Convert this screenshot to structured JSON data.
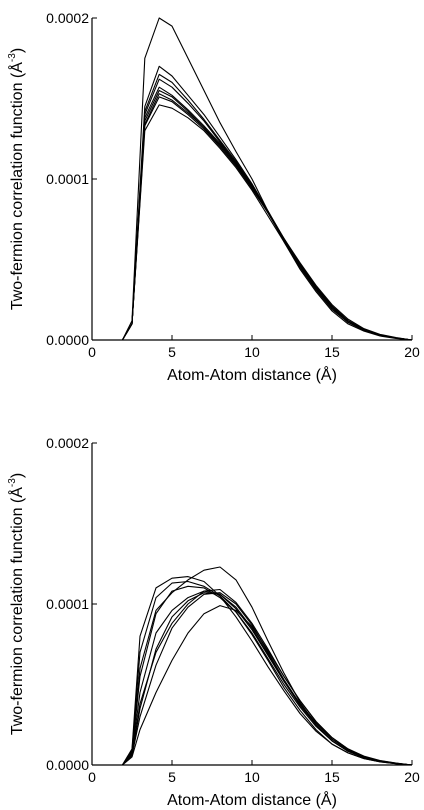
{
  "chart_data": [
    {
      "type": "line",
      "xlabel": "Atom-Atom distance (Å)",
      "ylabel": "Two-fermion correlation function (Å",
      "ylabel_sup": "-3",
      "ylabel_close": ")",
      "xlim": [
        0,
        20
      ],
      "ylim": [
        0,
        0.0002
      ],
      "xticks": [
        "0",
        "5",
        "10",
        "15",
        "20"
      ],
      "yticks": [
        "0.0000",
        "0.0001",
        "0.0002"
      ],
      "grid": false,
      "x": [
        1.9,
        2.5,
        3.3,
        4.2,
        5,
        6,
        7,
        8,
        9,
        10,
        11,
        12,
        13,
        14,
        15,
        16,
        17,
        18,
        19,
        20
      ],
      "series": [
        {
          "values": [
            0,
            1.2e-05,
            0.000175,
            0.000205,
            0.000195,
            0.000175,
            0.000155,
            0.000135,
            0.000117,
            0.0001,
            8e-05,
            6.1e-05,
            4.4e-05,
            3e-05,
            1.8e-05,
            1e-05,
            5.5e-06,
            2.5e-06,
            1e-06,
            0
          ]
        },
        {
          "values": [
            0,
            1e-05,
            0.000145,
            0.00017,
            0.000164,
            0.000152,
            0.00014,
            0.000126,
            0.000112,
            9.7e-05,
            8e-05,
            6.2e-05,
            4.6e-05,
            3.2e-05,
            2e-05,
            1.1e-05,
            6e-06,
            3e-06,
            1.2e-06,
            0
          ]
        },
        {
          "values": [
            0,
            1e-05,
            0.000142,
            0.000165,
            0.00016,
            0.000149,
            0.000137,
            0.000124,
            0.000111,
            9.6e-05,
            8e-05,
            6.2e-05,
            4.6e-05,
            3.2e-05,
            2e-05,
            1.1e-05,
            6e-06,
            3e-06,
            1.2e-06,
            0
          ]
        },
        {
          "values": [
            0,
            1e-05,
            0.00014,
            0.000162,
            0.000157,
            0.000147,
            0.000136,
            0.000123,
            0.00011,
            9.6e-05,
            8e-05,
            6.3e-05,
            4.7e-05,
            3.3e-05,
            2.1e-05,
            1.2e-05,
            6.5e-06,
            3.2e-06,
            1.3e-06,
            0
          ]
        },
        {
          "values": [
            0,
            1e-05,
            0.000138,
            0.000157,
            0.000152,
            0.000143,
            0.000133,
            0.000122,
            0.00011,
            9.6e-05,
            8e-05,
            6.3e-05,
            4.7e-05,
            3.3e-05,
            2.1e-05,
            1.2e-05,
            6.5e-06,
            3.2e-06,
            1.3e-06,
            0
          ]
        },
        {
          "values": [
            0,
            1e-05,
            0.000136,
            0.000155,
            0.000151,
            0.000142,
            0.000132,
            0.000121,
            0.000109,
            9.5e-05,
            7.9e-05,
            6.2e-05,
            4.7e-05,
            3.3e-05,
            2.1e-05,
            1.2e-05,
            6.5e-06,
            3.2e-06,
            1.3e-06,
            0
          ]
        },
        {
          "values": [
            0,
            1e-05,
            0.000134,
            0.000153,
            0.000149,
            0.000141,
            0.000132,
            0.000121,
            0.000109,
            9.5e-05,
            7.9e-05,
            6.2e-05,
            4.7e-05,
            3.3e-05,
            2.1e-05,
            1.2e-05,
            6.5e-06,
            3.2e-06,
            1.3e-06,
            0
          ]
        },
        {
          "values": [
            0,
            1e-05,
            0.000133,
            0.000151,
            0.000148,
            0.00014,
            0.000131,
            0.00012,
            0.000108,
            9.4e-05,
            7.9e-05,
            6.3e-05,
            4.8e-05,
            3.4e-05,
            2.2e-05,
            1.3e-05,
            7e-06,
            3.5e-06,
            1.5e-06,
            0
          ]
        },
        {
          "values": [
            0,
            1e-05,
            0.00013,
            0.000146,
            0.000144,
            0.000138,
            0.00013,
            0.000119,
            0.000107,
            9.3e-05,
            7.7e-05,
            6.1e-05,
            4.5e-05,
            3.1e-05,
            1.9e-05,
            1.1e-05,
            6e-06,
            3e-06,
            1.2e-06,
            0
          ]
        }
      ]
    },
    {
      "type": "line",
      "xlabel": "Atom-Atom distance (Å)",
      "ylabel": "Two-fermion correlation function (Å",
      "ylabel_sup": "-3",
      "ylabel_close": ")",
      "xlim": [
        0,
        20
      ],
      "ylim": [
        0,
        0.0002
      ],
      "xticks": [
        "0",
        "5",
        "10",
        "15",
        "20"
      ],
      "yticks": [
        "0.0000",
        "0.0001",
        "0.0002"
      ],
      "grid": false,
      "x": [
        1.9,
        2.5,
        3,
        4,
        5,
        6,
        7,
        8,
        9,
        10,
        11,
        12,
        13,
        14,
        15,
        16,
        17,
        18,
        19,
        20
      ],
      "series": [
        {
          "values": [
            0,
            5e-06,
            2.2e-05,
            4.5e-05,
            6.5e-05,
            8.2e-05,
            9.4e-05,
            9.9e-05,
            9.6e-05,
            8.6e-05,
            7.1e-05,
            5.5e-05,
            4e-05,
            2.7e-05,
            1.7e-05,
            1e-05,
            5.5e-06,
            2.8e-06,
            1.2e-06,
            0
          ]
        },
        {
          "values": [
            0,
            6e-06,
            3e-05,
            6.2e-05,
            8.5e-05,
            9.8e-05,
            0.000106,
            0.000107,
            0.0001,
            8.7e-05,
            7e-05,
            5.3e-05,
            3.8e-05,
            2.6e-05,
            1.6e-05,
            9.5e-06,
            5e-06,
            2.5e-06,
            1e-06,
            0
          ]
        },
        {
          "values": [
            0,
            6e-06,
            3.5e-05,
            7.2e-05,
            9.2e-05,
            0.000102,
            0.000107,
            0.000106,
            9.8e-05,
            8.5e-05,
            6.9e-05,
            5.2e-05,
            3.8e-05,
            2.6e-05,
            1.6e-05,
            9.5e-06,
            5e-06,
            2.5e-06,
            1e-06,
            0
          ]
        },
        {
          "values": [
            0,
            7e-06,
            4.5e-05,
            8.2e-05,
            9.6e-05,
            0.000104,
            0.000108,
            0.000106,
            9.7e-05,
            8.4e-05,
            6.8e-05,
            5.2e-05,
            3.7e-05,
            2.5e-05,
            1.5e-05,
            9e-06,
            4.8e-06,
            2.4e-06,
            1e-06,
            0
          ]
        },
        {
          "values": [
            0,
            6e-06,
            3.8e-05,
            7e-05,
            8.8e-05,
            0.0001,
            0.000108,
            0.000109,
            0.000101,
            8.8e-05,
            7.2e-05,
            5.5e-05,
            4e-05,
            2.7e-05,
            1.7e-05,
            1e-05,
            5.2e-06,
            2.6e-06,
            1.1e-06,
            0
          ]
        },
        {
          "values": [
            0,
            8e-06,
            5.5e-05,
            9.4e-05,
            0.000108,
            0.000111,
            0.00011,
            0.000104,
            9.5e-05,
            8.2e-05,
            6.6e-05,
            5e-05,
            3.6e-05,
            2.4e-05,
            1.5e-05,
            8.5e-06,
            4.6e-06,
            2.3e-06,
            1e-06,
            0
          ]
        },
        {
          "values": [
            0,
            9e-06,
            7e-05,
            0.000104,
            0.000113,
            0.000114,
            0.000111,
            0.000105,
            9.5e-05,
            8.1e-05,
            6.5e-05,
            4.8e-05,
            3.4e-05,
            2.2e-05,
            1.3e-05,
            7.5e-06,
            4e-06,
            2e-06,
            8e-07,
            0
          ]
        },
        {
          "values": [
            0,
            1e-05,
            8e-05,
            0.00011,
            0.000116,
            0.000117,
            0.000114,
            0.000105,
            9.2e-05,
            7.7e-05,
            6.1e-05,
            4.6e-05,
            3.2e-05,
            2.1e-05,
            1.3e-05,
            7.5e-06,
            4e-06,
            2e-06,
            8e-07,
            0
          ]
        },
        {
          "values": [
            0,
            8e-06,
            6e-05,
            9.6e-05,
            0.000107,
            0.000115,
            0.000121,
            0.000123,
            0.000115,
            9.8e-05,
            7.7e-05,
            5.7e-05,
            3.9e-05,
            2.5e-05,
            1.5e-05,
            8.5e-06,
            4.5e-06,
            2.2e-06,
            9e-07,
            0
          ]
        }
      ]
    }
  ]
}
